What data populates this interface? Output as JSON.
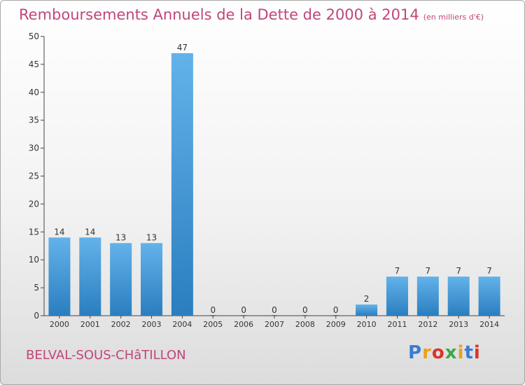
{
  "header": {
    "title": "Remboursements Annuels de la Dette de 2000 à 2014",
    "subtitle": "(en milliers d'€)"
  },
  "footer": {
    "commune": "BELVAL-SOUS-CHâTILLON",
    "logo": "Proxiti"
  },
  "colors": {
    "title": "#c0467a",
    "bar_top": "#63b2ea",
    "bar_bottom": "#2a7ebf",
    "logo": [
      "#3a7bd5",
      "#e8a21a",
      "#d9342b",
      "#3aa84a",
      "#e8a21a",
      "#3a7bd5",
      "#d9342b"
    ]
  },
  "chart_data": {
    "type": "bar",
    "title": "Remboursements Annuels de la Dette de 2000 à 2014",
    "subtitle": "(en milliers d'€)",
    "categories": [
      "2000",
      "2001",
      "2002",
      "2003",
      "2004",
      "2005",
      "2006",
      "2007",
      "2008",
      "2009",
      "2010",
      "2011",
      "2012",
      "2013",
      "2014"
    ],
    "values": [
      14,
      14,
      13,
      13,
      47,
      0,
      0,
      0,
      0,
      0,
      2,
      7,
      7,
      7,
      7
    ],
    "ylim": [
      0,
      50
    ],
    "yticks": [
      0,
      5,
      10,
      15,
      20,
      25,
      30,
      35,
      40,
      45,
      50
    ],
    "grid": false,
    "xlabel": "",
    "ylabel": ""
  }
}
